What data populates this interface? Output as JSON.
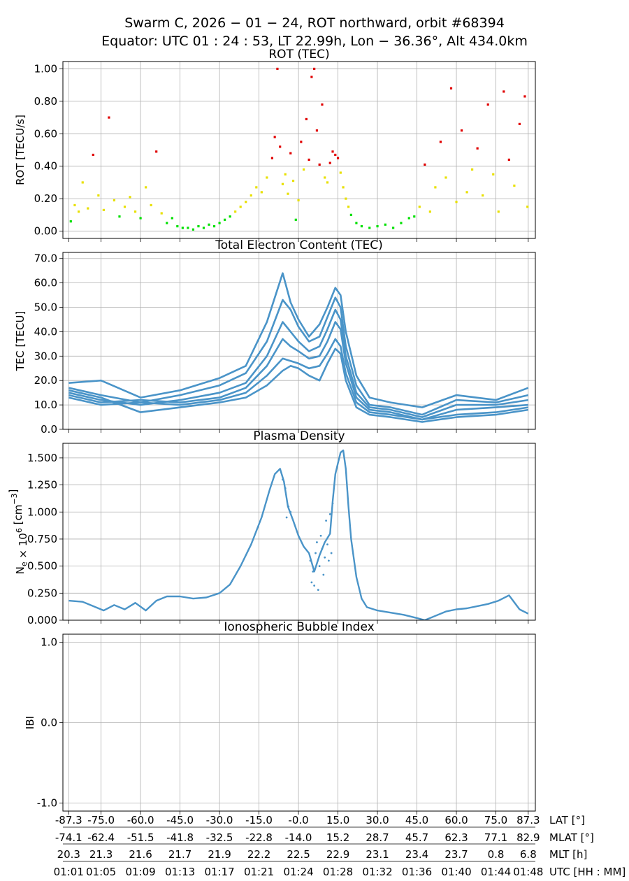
{
  "figure": {
    "title_line1": "Swarm C,  2026 − 01 − 24,  ROT northward,  orbit #68394",
    "title_line2": "Equator:  UTC 01 : 24 : 53,  LT 22.99h,  Lon  − 36.36°,  Alt 434.0km"
  },
  "chart_data": [
    {
      "id": "rot",
      "type": "scatter",
      "title": "ROT (TEC)",
      "ylabel": "ROT [TECU/s]",
      "ylim": [
        -0.045,
        1.045
      ],
      "yticks": [
        0.0,
        0.2,
        0.4,
        0.6,
        0.8,
        1.0
      ],
      "yticklabels": [
        "0.00",
        "0.20",
        "0.40",
        "0.60",
        "0.80",
        "1.00"
      ],
      "grid": true,
      "color_thresholds": {
        "low_max": 0.1,
        "mid_max": 0.4
      },
      "colors": {
        "low": "#00e000",
        "mid": "#e8e000",
        "high": "#e00000"
      },
      "points": [
        [
          -86.5,
          0.06
        ],
        [
          -85,
          0.16
        ],
        [
          -83.5,
          0.12
        ],
        [
          -82,
          0.3
        ],
        [
          -80,
          0.14
        ],
        [
          -78,
          0.47
        ],
        [
          -76,
          0.22
        ],
        [
          -74,
          0.13
        ],
        [
          -72,
          0.7
        ],
        [
          -70,
          0.19
        ],
        [
          -68,
          0.09
        ],
        [
          -66,
          0.15
        ],
        [
          -64,
          0.21
        ],
        [
          -62,
          0.12
        ],
        [
          -60,
          0.08
        ],
        [
          -58,
          0.27
        ],
        [
          -56,
          0.16
        ],
        [
          -54,
          0.49
        ],
        [
          -52,
          0.11
        ],
        [
          -50,
          0.05
        ],
        [
          -48,
          0.08
        ],
        [
          -46,
          0.03
        ],
        [
          -44,
          0.02
        ],
        [
          -42,
          0.02
        ],
        [
          -40,
          0.01
        ],
        [
          -38,
          0.03
        ],
        [
          -36,
          0.02
        ],
        [
          -34,
          0.04
        ],
        [
          -32,
          0.03
        ],
        [
          -30,
          0.05
        ],
        [
          -28,
          0.07
        ],
        [
          -26,
          0.09
        ],
        [
          -24,
          0.12
        ],
        [
          -22,
          0.15
        ],
        [
          -20,
          0.18
        ],
        [
          -18,
          0.22
        ],
        [
          -16,
          0.27
        ],
        [
          -14,
          0.24
        ],
        [
          -12,
          0.33
        ],
        [
          -10,
          0.45
        ],
        [
          -9,
          0.58
        ],
        [
          -8,
          1.0
        ],
        [
          -7,
          0.52
        ],
        [
          -6,
          0.29
        ],
        [
          -5,
          0.35
        ],
        [
          -4,
          0.23
        ],
        [
          -3,
          0.48
        ],
        [
          -2,
          0.31
        ],
        [
          -1,
          0.07
        ],
        [
          0,
          0.19
        ],
        [
          1,
          0.55
        ],
        [
          2,
          0.38
        ],
        [
          3,
          0.69
        ],
        [
          4,
          0.44
        ],
        [
          5,
          0.95
        ],
        [
          6,
          1.0
        ],
        [
          7,
          0.62
        ],
        [
          8,
          0.41
        ],
        [
          9,
          0.78
        ],
        [
          10,
          0.33
        ],
        [
          11,
          0.3
        ],
        [
          12,
          0.42
        ],
        [
          13,
          0.49
        ],
        [
          14,
          0.47
        ],
        [
          15,
          0.45
        ],
        [
          16,
          0.36
        ],
        [
          17,
          0.27
        ],
        [
          18,
          0.2
        ],
        [
          19,
          0.15
        ],
        [
          20,
          0.1
        ],
        [
          22,
          0.05
        ],
        [
          24,
          0.03
        ],
        [
          27,
          0.02
        ],
        [
          30,
          0.03
        ],
        [
          33,
          0.04
        ],
        [
          36,
          0.02
        ],
        [
          39,
          0.05
        ],
        [
          42,
          0.08
        ],
        [
          44,
          0.09
        ],
        [
          46,
          0.15
        ],
        [
          48,
          0.41
        ],
        [
          50,
          0.12
        ],
        [
          52,
          0.27
        ],
        [
          54,
          0.55
        ],
        [
          56,
          0.33
        ],
        [
          58,
          0.88
        ],
        [
          60,
          0.18
        ],
        [
          62,
          0.62
        ],
        [
          64,
          0.24
        ],
        [
          66,
          0.38
        ],
        [
          68,
          0.51
        ],
        [
          70,
          0.22
        ],
        [
          72,
          0.78
        ],
        [
          74,
          0.35
        ],
        [
          76,
          0.12
        ],
        [
          78,
          0.86
        ],
        [
          80,
          0.44
        ],
        [
          82,
          0.28
        ],
        [
          84,
          0.66
        ],
        [
          86,
          0.83
        ],
        [
          87,
          0.15
        ]
      ]
    },
    {
      "id": "tec",
      "type": "line",
      "title": "Total Electron Content (TEC)",
      "ylabel": "TEC [TECU]",
      "ylim": [
        0,
        72.5
      ],
      "yticks": [
        0,
        10,
        20,
        30,
        40,
        50,
        60,
        70
      ],
      "yticklabels": [
        "0.0",
        "10.0",
        "20.0",
        "30.0",
        "40.0",
        "50.0",
        "60.0",
        "70.0"
      ],
      "grid": true,
      "color": "#4a94c8",
      "series": [
        {
          "name": "arc-1",
          "x": [
            -87.3,
            -75,
            -60,
            -45,
            -30,
            -20,
            -12,
            -6,
            -3,
            0,
            4,
            8,
            11,
            14,
            16,
            18,
            22,
            27,
            35,
            47,
            60,
            75,
            87.3
          ],
          "values": [
            19,
            20,
            13,
            16,
            21,
            26,
            44,
            64,
            52,
            45,
            38,
            43,
            50,
            58,
            55,
            40,
            22,
            13,
            11,
            9,
            14,
            12,
            17
          ]
        },
        {
          "name": "arc-2",
          "x": [
            -87.3,
            -75,
            -60,
            -45,
            -30,
            -20,
            -12,
            -6,
            -3,
            0,
            4,
            8,
            11,
            14,
            16,
            18,
            22,
            27,
            35,
            47,
            60,
            75,
            87.3
          ],
          "values": [
            17,
            14,
            11,
            14,
            18,
            23,
            36,
            53,
            49,
            42,
            36,
            38,
            46,
            54,
            50,
            34,
            18,
            10,
            9,
            6,
            12,
            11,
            14
          ]
        },
        {
          "name": "arc-3",
          "x": [
            -87.3,
            -75,
            -60,
            -45,
            -30,
            -20,
            -12,
            -6,
            -3,
            0,
            4,
            8,
            11,
            14,
            16,
            18,
            22,
            27,
            35,
            47,
            60,
            75,
            87.3
          ],
          "values": [
            15,
            12,
            10,
            12,
            15,
            19,
            30,
            44,
            40,
            36,
            32,
            34,
            41,
            49,
            45,
            30,
            15,
            9,
            8,
            5,
            10,
            10,
            12
          ]
        },
        {
          "name": "arc-4",
          "x": [
            -87.3,
            -75,
            -60,
            -45,
            -30,
            -20,
            -12,
            -6,
            -3,
            0,
            4,
            8,
            11,
            14,
            16,
            18,
            22,
            27,
            35,
            47,
            60,
            75,
            87.3
          ],
          "values": [
            14,
            11,
            12,
            11,
            13,
            17,
            26,
            37,
            34,
            32,
            29,
            30,
            36,
            44,
            41,
            27,
            13,
            8,
            7,
            4,
            8,
            9,
            10
          ]
        },
        {
          "name": "arc-5",
          "x": [
            -87.3,
            -75,
            -60,
            -45,
            -30,
            -20,
            -12,
            -6,
            -3,
            0,
            4,
            8,
            11,
            14,
            16,
            18,
            22,
            27,
            35,
            47,
            60,
            75,
            87.3
          ],
          "values": [
            13,
            10,
            11,
            10,
            12,
            15,
            22,
            29,
            28,
            27,
            25,
            26,
            31,
            37,
            34,
            23,
            11,
            7,
            6,
            4,
            6,
            7,
            9
          ]
        },
        {
          "name": "arc-6",
          "x": [
            -87.3,
            -75,
            -60,
            -45,
            -30,
            -20,
            -12,
            -6,
            -3,
            0,
            4,
            8,
            11,
            14,
            16,
            18,
            22,
            27,
            35,
            47,
            60,
            75,
            87.3
          ],
          "values": [
            16,
            13,
            7,
            9,
            11,
            13,
            18,
            24,
            26,
            25,
            22,
            20,
            27,
            33,
            31,
            20,
            9,
            6,
            5,
            3,
            5,
            6,
            8
          ]
        }
      ]
    },
    {
      "id": "ne",
      "type": "line",
      "title": "Plasma Density",
      "ylabel": "Ne × 10⁶ [cm⁻³]",
      "ylabel_parts": {
        "base": "N",
        "sub": "e",
        "mid": " × 10",
        "sup1": "6",
        "tail": " [cm",
        "sup2": "−3",
        "end": "]"
      },
      "ylim": [
        0,
        1.635
      ],
      "yticks": [
        0,
        0.25,
        0.5,
        0.75,
        1.0,
        1.25,
        1.5
      ],
      "yticklabels": [
        "0.000",
        "0.250",
        "0.500",
        "0.750",
        "1.000",
        "1.250",
        "1.500"
      ],
      "grid": true,
      "color": "#4a94c8",
      "x": [
        -87.3,
        -82,
        -78,
        -74,
        -70,
        -66,
        -62,
        -58,
        -54,
        -50,
        -45,
        -40,
        -35,
        -30,
        -26,
        -22,
        -18,
        -14,
        -11,
        -9,
        -7,
        -5.5,
        -4,
        -2,
        0,
        2,
        4,
        6,
        8,
        10,
        12,
        13,
        14,
        15,
        16,
        17,
        18,
        19,
        20,
        22,
        24,
        26,
        30,
        35,
        40,
        45,
        48,
        52,
        56,
        60,
        64,
        68,
        72,
        76,
        80,
        84,
        87.3
      ],
      "values": [
        0.18,
        0.17,
        0.13,
        0.09,
        0.14,
        0.1,
        0.16,
        0.09,
        0.18,
        0.22,
        0.22,
        0.2,
        0.21,
        0.25,
        0.33,
        0.5,
        0.7,
        0.95,
        1.2,
        1.35,
        1.4,
        1.28,
        1.05,
        0.92,
        0.78,
        0.68,
        0.62,
        0.45,
        0.6,
        0.72,
        0.8,
        1.1,
        1.35,
        1.45,
        1.55,
        1.57,
        1.4,
        1.05,
        0.75,
        0.4,
        0.2,
        0.12,
        0.09,
        0.07,
        0.05,
        0.02,
        0.0,
        0.04,
        0.08,
        0.1,
        0.11,
        0.13,
        0.15,
        0.18,
        0.23,
        0.1,
        0.06
      ],
      "scatter_overlay": [
        [
          -6,
          1.3
        ],
        [
          -5,
          1.22
        ],
        [
          -4.5,
          0.95
        ],
        [
          -3.8,
          1.05
        ],
        [
          -3,
          1.0
        ],
        [
          4.5,
          0.55
        ],
        [
          5,
          0.35
        ],
        [
          5.5,
          0.45
        ],
        [
          6,
          0.32
        ],
        [
          6.5,
          0.62
        ],
        [
          7,
          0.72
        ],
        [
          7.5,
          0.28
        ],
        [
          8,
          0.5
        ],
        [
          8.5,
          0.78
        ],
        [
          9,
          0.66
        ],
        [
          9.5,
          0.42
        ],
        [
          10,
          0.58
        ],
        [
          10.5,
          0.92
        ],
        [
          11,
          0.7
        ],
        [
          11.5,
          0.55
        ],
        [
          12,
          0.98
        ],
        [
          12.5,
          0.62
        ],
        [
          13,
          1.08
        ]
      ]
    },
    {
      "id": "ibi",
      "type": "scatter",
      "title": "Ionospheric Bubble Index",
      "ylabel": "IBI",
      "ylim": [
        -1.1,
        1.1
      ],
      "yticks": [
        -1,
        0,
        1
      ],
      "yticklabels": [
        "-1.0",
        "0.0",
        "1.0"
      ],
      "grid": true,
      "points": []
    }
  ],
  "x_axis": {
    "tick_positions": [
      -87.3,
      -75,
      -60,
      -45,
      -30,
      -15,
      0,
      15,
      30,
      45,
      60,
      75,
      87.3
    ],
    "rows": [
      {
        "name": "lat",
        "label": "LAT [°]",
        "ticks": [
          "-87.3",
          "-75.0",
          "-60.0",
          "-45.0",
          "-30.0",
          "-15.0",
          "-0.0",
          "15.0",
          "30.0",
          "45.0",
          "60.0",
          "75.0",
          "87.3"
        ]
      },
      {
        "name": "mlat",
        "label": "MLAT [°]",
        "ticks": [
          "-74.1",
          "-62.4",
          "-51.5",
          "-41.8",
          "-32.5",
          "-22.8",
          "-14.0",
          "15.2",
          "28.7",
          "45.7",
          "62.3",
          "77.1",
          "82.9"
        ]
      },
      {
        "name": "mlt",
        "label": "MLT [h]",
        "ticks": [
          "20.3",
          "21.3",
          "21.6",
          "21.7",
          "21.9",
          "22.2",
          "22.5",
          "22.9",
          "23.1",
          "23.4",
          "23.7",
          "0.8",
          "6.8"
        ]
      },
      {
        "name": "utc",
        "label": "UTC [HH : MM]",
        "ticks": [
          "01:01",
          "01:05",
          "01:09",
          "01:13",
          "01:17",
          "01:21",
          "01:24",
          "01:28",
          "01:32",
          "01:36",
          "01:40",
          "01:44",
          "01:48"
        ]
      }
    ]
  }
}
